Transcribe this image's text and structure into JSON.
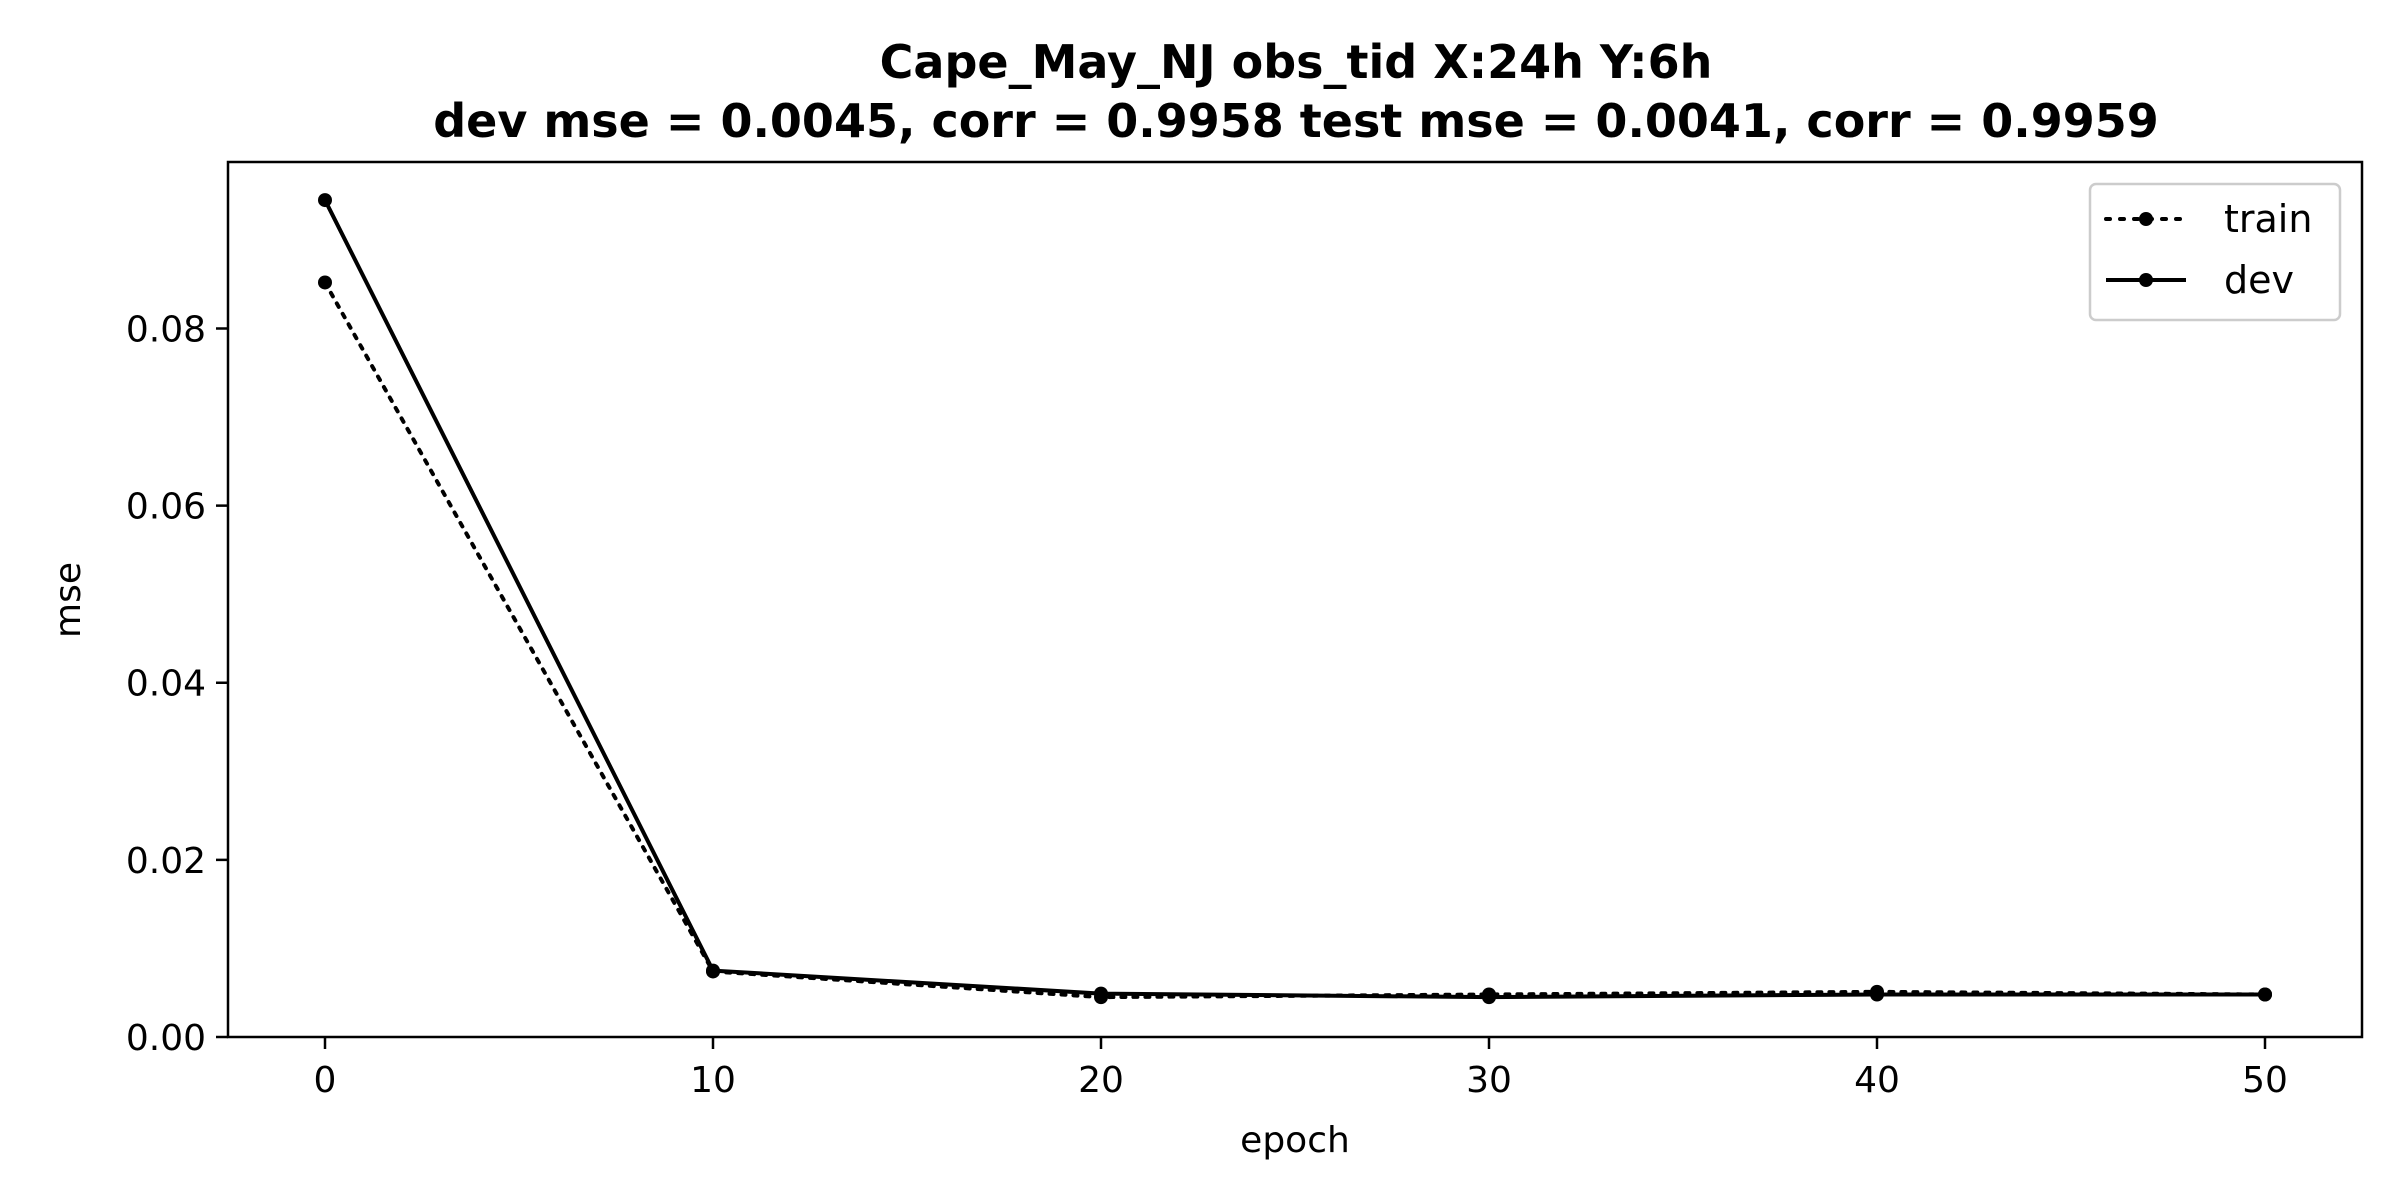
{
  "chart_data": {
    "type": "line",
    "title_line1": "Cape_May_NJ   obs_tid   X:24h   Y:6h",
    "title_line2": "dev mse = 0.0045, corr = 0.9958   test mse = 0.0041, corr = 0.9959",
    "xlabel": "epoch",
    "ylabel": "mse",
    "xlim": [
      -2.5,
      52.5
    ],
    "ylim": [
      0.0,
      0.0988
    ],
    "xticks": [
      0,
      10,
      20,
      30,
      40,
      50
    ],
    "xtick_labels": [
      "0",
      "10",
      "20",
      "30",
      "40",
      "50"
    ],
    "yticks": [
      0.0,
      0.02,
      0.04,
      0.06,
      0.08
    ],
    "ytick_labels": [
      "0.00",
      "0.02",
      "0.04",
      "0.06",
      "0.08"
    ],
    "grid": false,
    "legend_position": "top-right",
    "x": [
      0,
      10,
      20,
      30,
      40,
      50
    ],
    "series": [
      {
        "name": "train",
        "style": "dotted",
        "color": "#000000",
        "values": [
          0.0852,
          0.0074,
          0.0045,
          0.0048,
          0.0051,
          0.0048
        ]
      },
      {
        "name": "dev",
        "style": "solid",
        "color": "#000000",
        "values": [
          0.0945,
          0.0075,
          0.0049,
          0.0045,
          0.0048,
          0.0048
        ]
      }
    ]
  }
}
